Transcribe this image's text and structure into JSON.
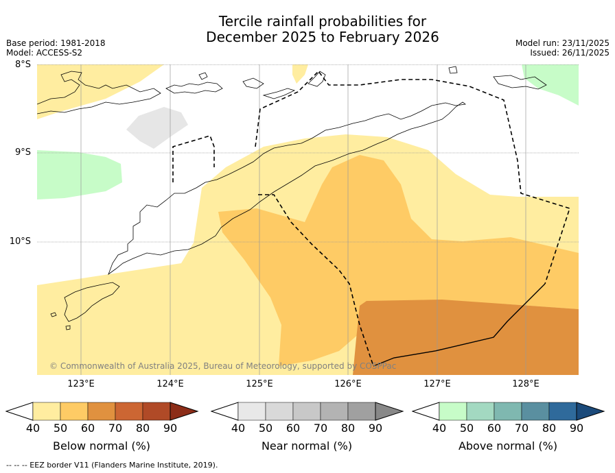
{
  "title_line1": "Tercile rainfall probabilities for",
  "title_line2": "December 2025 to February 2026",
  "meta_left": {
    "base_period": "Base period: 1981-2018",
    "model": "Model: ACCESS-S2"
  },
  "meta_right": {
    "model_run": "Model run: 23/11/2025",
    "issued": "Issued: 26/11/2025"
  },
  "latitudes": [
    "8°S",
    "9°S",
    "10°S"
  ],
  "longitudes": [
    "123°E",
    "124°E",
    "125°E",
    "126°E",
    "127°E",
    "128°E"
  ],
  "copyright": "© Commonwealth of Australia 2025, Bureau of Meteorology, supported by COSPPac",
  "colorbars": [
    {
      "label": "Below normal (%)",
      "ticks": [
        "40",
        "50",
        "60",
        "70",
        "80",
        "90"
      ],
      "colors": [
        "#ffeda0",
        "#fecb65",
        "#e0913f",
        "#cc6633",
        "#b04a27",
        "#8c2d18"
      ]
    },
    {
      "label": "Near normal (%)",
      "ticks": [
        "40",
        "50",
        "60",
        "70",
        "80",
        "90"
      ],
      "colors": [
        "#e8e8e8",
        "#d9d9d9",
        "#c8c8c8",
        "#b3b3b3",
        "#a0a0a0",
        "#888888"
      ]
    },
    {
      "label": "Above normal (%)",
      "ticks": [
        "40",
        "50",
        "60",
        "70",
        "80",
        "90"
      ],
      "colors": [
        "#c7fcc8",
        "#a3d9c1",
        "#7fb8b0",
        "#5a8fa0",
        "#2f6a9b",
        "#1b4a7a"
      ]
    }
  ],
  "footer": "--  --  -- EEZ border V11 (Flanders Marine Institute, 2019).",
  "colors": {
    "below_50": "#ffeda0",
    "below_60": "#fecb65",
    "below_70": "#e0913f",
    "near_50": "#e6e6e6",
    "above_50": "#c7fcc8"
  }
}
